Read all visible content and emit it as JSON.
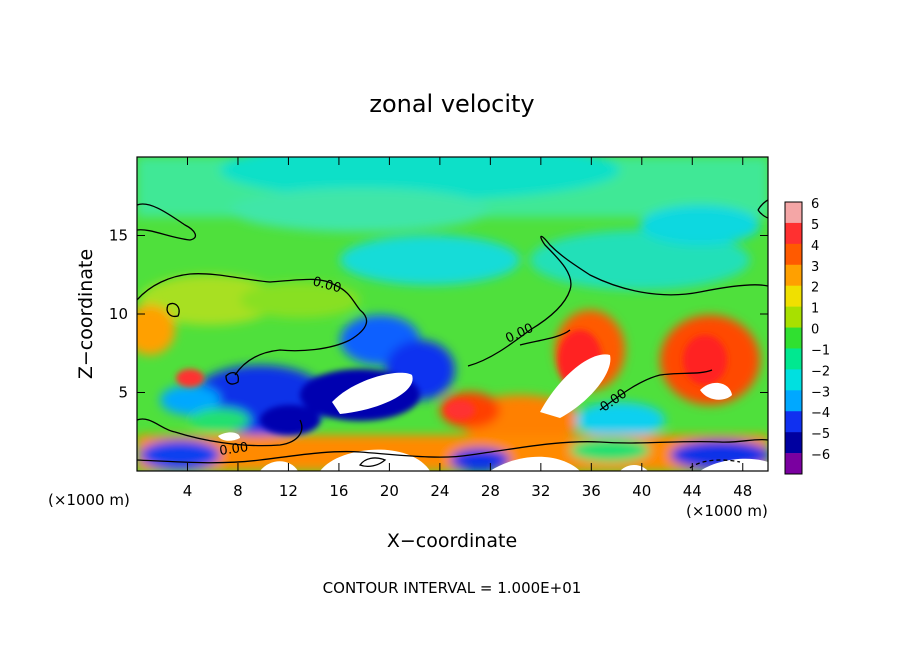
{
  "chart_data": {
    "type": "heatmap",
    "title": "zonal velocity",
    "xlabel": "X−coordinate",
    "ylabel": "Z−coordinate",
    "x_unit_left": "(×1000 m)",
    "x_unit_right": "(×1000 m)",
    "xlim": [
      0,
      50
    ],
    "ylim": [
      0,
      20
    ],
    "x_ticks": [
      4,
      8,
      12,
      16,
      20,
      24,
      28,
      32,
      36,
      40,
      44,
      48
    ],
    "y_ticks": [
      5,
      10,
      15
    ],
    "colorbar": {
      "levels": [
        6,
        5,
        4,
        3,
        2,
        1,
        0,
        -1,
        -2,
        -3,
        -4,
        -5,
        -6
      ],
      "labels": [
        "6",
        "5",
        "4",
        "3",
        "2",
        "1",
        "0",
        "−1",
        "−2",
        "−3",
        "−4",
        "−5",
        "−6"
      ],
      "colors": [
        "#f4a6a6",
        "#ff3030",
        "#ff5a00",
        "#ffa000",
        "#f0e000",
        "#a8e000",
        "#30e030",
        "#00e890",
        "#00e0e0",
        "#00a8ff",
        "#1030f0",
        "#0000a0",
        "#7a00a0"
      ]
    },
    "contour_labels": [
      "0.00",
      "0.00",
      "0.00",
      "0.00"
    ],
    "footer": "CONTOUR INTERVAL = 1.000E+01"
  }
}
